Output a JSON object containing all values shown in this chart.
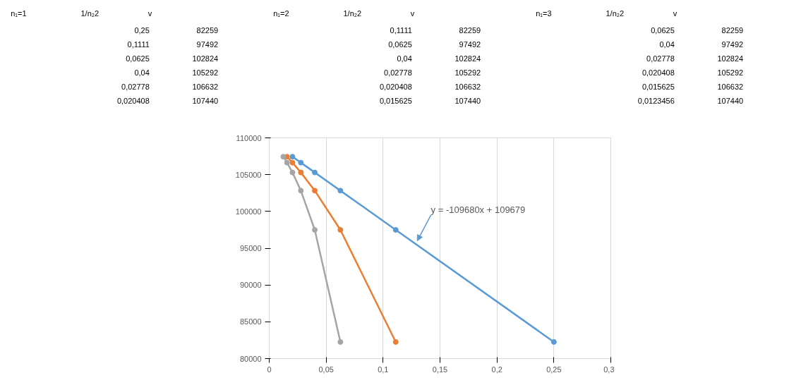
{
  "chart_data": [
    {
      "type": "other",
      "annotations": [
        "n₁=1",
        "1/n₂2",
        "v",
        "0,25",
        "82259",
        "0,1111",
        "97492",
        "0,0625",
        "102824",
        "0,04",
        "105292",
        "0,02778",
        "106632",
        "0,020408",
        "107440"
      ]
    },
    {
      "type": "other",
      "annotations": [
        "n₁=2",
        "1/n₂2",
        "v",
        "0,1111",
        "82259",
        "0,0625",
        "97492",
        "0,04",
        "102824",
        "0,02778",
        "105292",
        "0,020408",
        "106632",
        "0,015625",
        "107440"
      ]
    },
    {
      "type": "other",
      "annotations": [
        "n₁=3",
        "1/n₂2",
        "v",
        "0,0625",
        "82259",
        "0,04",
        "97492",
        "0,02778",
        "102824",
        "0,020408",
        "105292",
        "0,015625",
        "106632",
        "0,0123456",
        "107440"
      ]
    },
    {
      "type": "line",
      "series": [
        {
          "color": "#5b9bd5",
          "x": [
            0.25,
            0.1111,
            0.0625,
            0.04,
            0.02778,
            0.020408
          ],
          "values": [
            82259,
            97492,
            102824,
            105292,
            106632,
            107440
          ]
        },
        {
          "color": "#ed7d31",
          "x": [
            0.1111,
            0.0625,
            0.04,
            0.02778,
            0.020408,
            0.015625
          ],
          "values": [
            82259,
            97492,
            102824,
            105292,
            106632,
            107440
          ]
        },
        {
          "color": "#a5a5a5",
          "x": [
            0.0625,
            0.04,
            0.02778,
            0.020408,
            0.015625,
            0.0123456
          ],
          "values": [
            82259,
            97492,
            102824,
            105292,
            106632,
            107440
          ]
        }
      ],
      "xlim": [
        0,
        0.3
      ],
      "xticks": [
        0,
        {
          "value": 0.05,
          "label": "0,05"
        },
        {
          "value": 0.1,
          "label": "0,1"
        },
        {
          "value": 0.15,
          "label": "0,15"
        },
        {
          "value": 0.2,
          "label": "0,2"
        },
        {
          "value": 0.25,
          "label": "0,25"
        },
        {
          "value": 0.3,
          "label": "0,3"
        }
      ],
      "ylim": [
        80000,
        110000
      ],
      "yticks": [
        80000,
        85000,
        90000,
        95000,
        100000,
        105000,
        110000
      ],
      "grid": "x",
      "marker": "circle",
      "line_style": "solid",
      "annotations": [
        {
          "text": "y = -109680x + 109679",
          "x": 0.13,
          "y": 96000
        }
      ]
    }
  ]
}
